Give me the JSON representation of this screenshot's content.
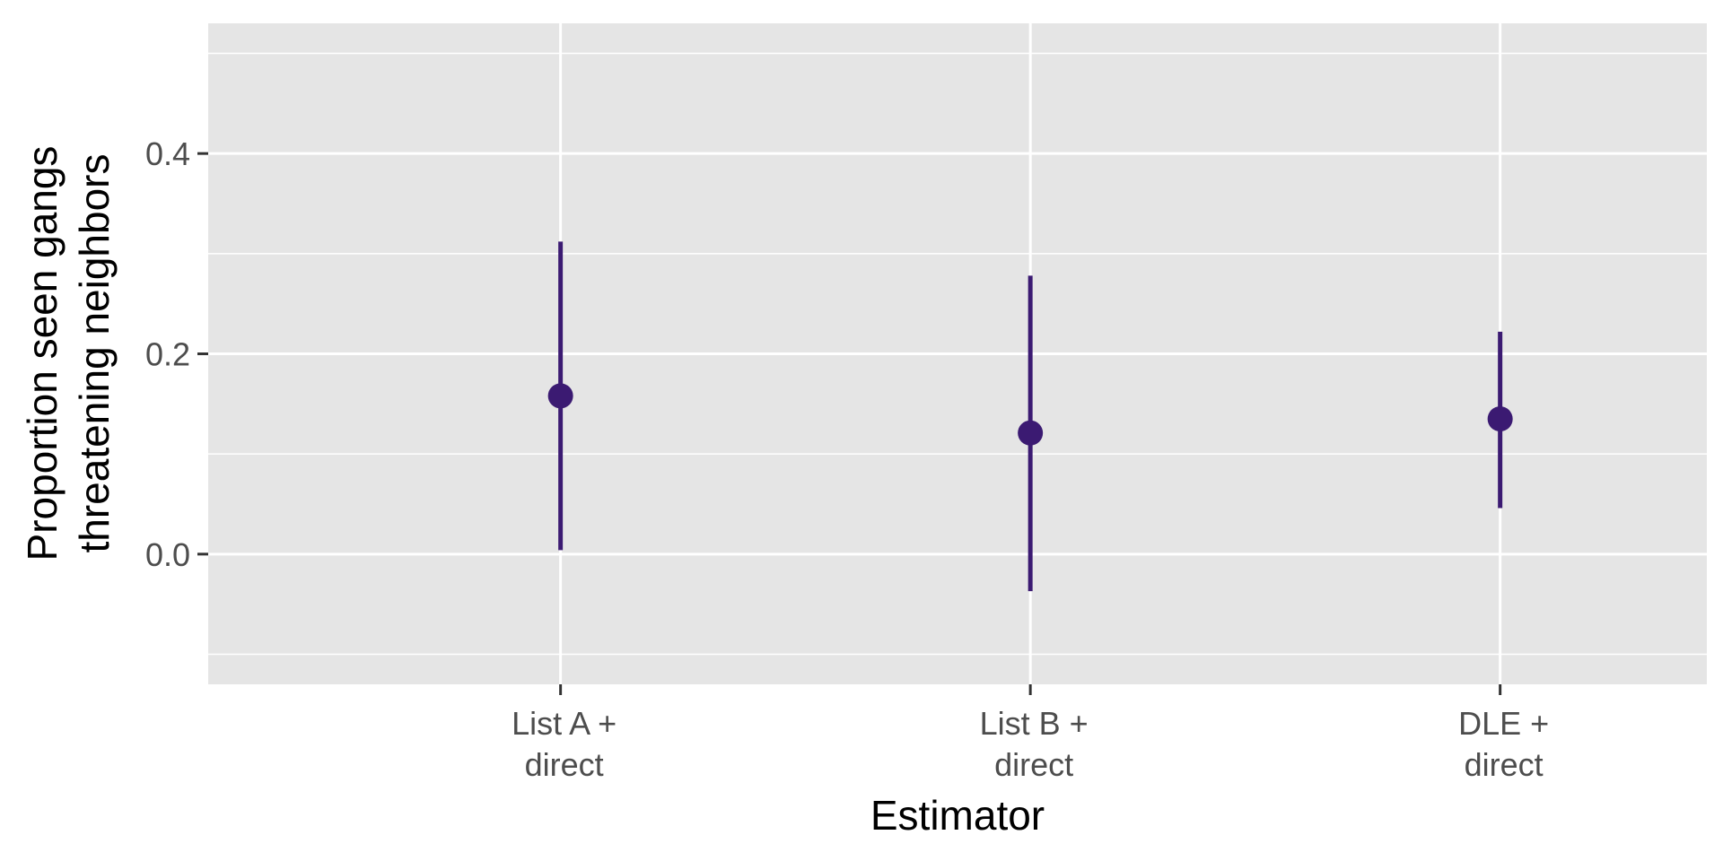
{
  "chart_data": {
    "type": "scatter",
    "subtype": "pointrange",
    "title": "",
    "xlabel": "Estimator",
    "ylabel_lines": [
      "Proportion seen gangs",
      "threatening neighbors"
    ],
    "categories": [
      [
        "List A +",
        "direct"
      ],
      [
        "List B +",
        "direct"
      ],
      [
        "DLE +",
        "direct"
      ]
    ],
    "series": [
      {
        "estimate": [
          0.158,
          0.121,
          0.135
        ],
        "lower": [
          0.004,
          -0.037,
          0.046
        ],
        "upper": [
          0.312,
          0.278,
          0.222
        ]
      }
    ],
    "ylim": [
      -0.13,
      0.53
    ],
    "yticks": [
      0.0,
      0.2,
      0.4
    ],
    "ytick_labels": [
      "0.0",
      "0.2",
      "0.4"
    ],
    "y_minor_gridlines": [
      -0.1,
      0.1,
      0.3,
      0.5
    ],
    "grid": true,
    "panel_background": "#e5e5e5",
    "gridline_color": "#ffffff",
    "point_color": "#3b1a72",
    "legend": "none"
  }
}
